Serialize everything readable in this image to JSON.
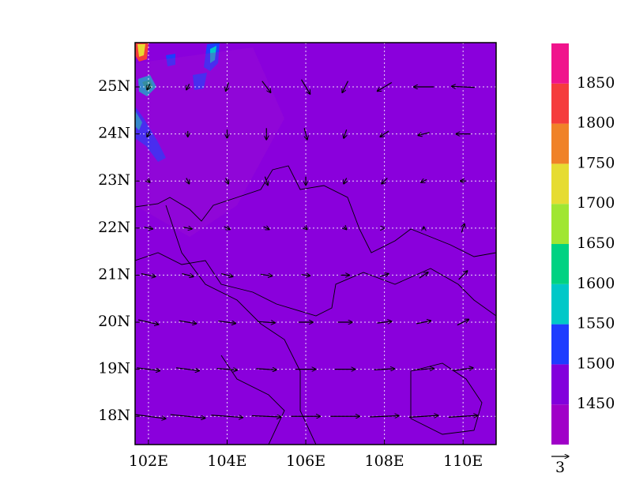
{
  "map": {
    "lonlim": [
      101.66,
      110.84
    ],
    "latlim": [
      17.4,
      25.94
    ],
    "lonticks": [
      {
        "value": 102,
        "label": "102E"
      },
      {
        "value": 104,
        "label": "104E"
      },
      {
        "value": 106,
        "label": "106E"
      },
      {
        "value": 108,
        "label": "108E"
      },
      {
        "value": 110,
        "label": "110E"
      }
    ],
    "latticks": [
      {
        "value": 18,
        "label": "18N"
      },
      {
        "value": 19,
        "label": "19N"
      },
      {
        "value": 20,
        "label": "20N"
      },
      {
        "value": 21,
        "label": "21N"
      },
      {
        "value": 22,
        "label": "22N"
      },
      {
        "value": 23,
        "label": "23N"
      },
      {
        "value": 24,
        "label": "24N"
      },
      {
        "value": 25,
        "label": "25N"
      }
    ],
    "grid": true,
    "field_color": "#8a00dc"
  },
  "colorbar": {
    "levels": [
      1450,
      1500,
      1550,
      1600,
      1650,
      1700,
      1750,
      1800,
      1850
    ],
    "colors": [
      "#a000c8",
      "#8200dc",
      "#1e3cff",
      "#00c8c8",
      "#00d282",
      "#a0e632",
      "#e6dc32",
      "#f08228",
      "#f53c3c",
      "#f0148c"
    ]
  },
  "wind": {
    "lons": [
      102,
      103,
      104,
      105,
      106,
      107,
      108,
      109,
      110
    ],
    "lats": [
      25,
      24,
      23,
      22,
      21,
      20,
      19,
      18
    ],
    "u": [
      [
        -0.5,
        -0.5,
        -0.5,
        1.5,
        1.5,
        -1,
        -2.5,
        -3.5,
        -4
      ],
      [
        -0.5,
        0,
        0,
        0,
        0.5,
        -0.5,
        -1.5,
        -2,
        -2.5
      ],
      [
        0.5,
        0.5,
        0.5,
        0.5,
        0,
        -0.5,
        -1,
        -1,
        -1
      ],
      [
        1.5,
        1.5,
        1,
        1,
        0.5,
        0.5,
        0,
        0,
        0.5
      ],
      [
        2.5,
        2,
        2,
        2,
        1.5,
        1.5,
        1.5,
        1.5,
        1.5
      ],
      [
        3.5,
        3,
        3,
        3,
        2.5,
        2.5,
        2.5,
        2.5,
        2
      ],
      [
        4,
        4,
        3.5,
        3.5,
        3.5,
        3.5,
        3.5,
        3.5,
        3.5
      ],
      [
        6,
        6,
        5.5,
        5,
        5,
        5,
        5,
        5,
        5
      ]
    ],
    "v": [
      [
        -1,
        -1,
        -1.5,
        -2,
        -2.5,
        -2,
        -1.5,
        0,
        0.2
      ],
      [
        -1,
        -1,
        -1.5,
        -2,
        -2,
        -1.5,
        -1,
        -0.5,
        0
      ],
      [
        -0.5,
        -1,
        -1,
        -1.5,
        -1.5,
        -1,
        -1,
        -0.5,
        0
      ],
      [
        -0.3,
        -0.3,
        -0.5,
        -0.5,
        -0.5,
        -0.5,
        0,
        0.5,
        1.5
      ],
      [
        -0.5,
        -0.5,
        -0.5,
        -0.3,
        -0.2,
        0,
        0.5,
        1,
        1.5
      ],
      [
        -0.8,
        -0.5,
        -0.4,
        -0.2,
        0,
        0,
        0.3,
        0.5,
        1
      ],
      [
        -0.5,
        -0.5,
        -0.3,
        -0.2,
        0,
        0,
        0.2,
        0.3,
        0.5
      ],
      [
        -0.8,
        -0.6,
        -0.4,
        -0.2,
        0,
        0,
        0.2,
        0.3,
        0.3
      ]
    ],
    "reference": 3
  }
}
